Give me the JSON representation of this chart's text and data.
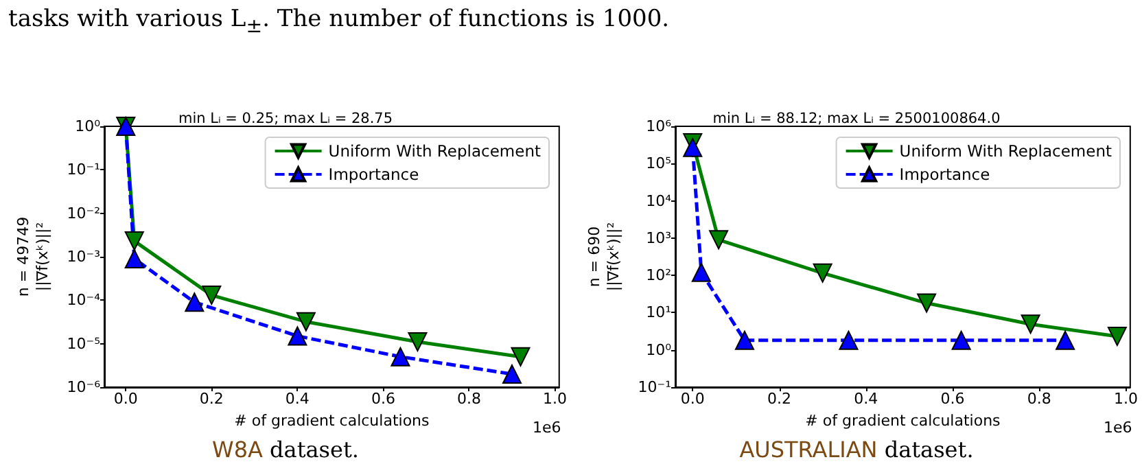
{
  "chart_data": [
    {
      "type": "line",
      "title": "min Lᵢ = 0.25; max Lᵢ = 28.75",
      "xlabel": "# of gradient calculations",
      "ylabel": "n = 49749\n||∇f(xᵏ)||²",
      "annotations": [
        "tasks with various L$_{±}$. The number of functions is 1000.",
        "1e6",
        "W8A dataset."
      ],
      "series": [
        {
          "name": "Uniform With Replacement",
          "color": "#008000",
          "marker": "triangle-down",
          "line_style": "solid",
          "x": [
            0,
            0.02,
            0.2,
            0.42,
            0.68,
            0.92
          ],
          "values": [
            1,
            0.0023,
            0.00013,
            3.2e-05,
            1.1e-05,
            5e-06
          ]
        },
        {
          "name": "Importance",
          "color": "#0000ff",
          "marker": "triangle",
          "line_style": "dashed",
          "x": [
            0,
            0.02,
            0.16,
            0.4,
            0.64,
            0.9
          ],
          "values": [
            1,
            0.0009,
            9e-05,
            1.5e-05,
            5e-06,
            2e-06
          ]
        }
      ],
      "log": "y",
      "xlim": [
        -0.05,
        1.01
      ],
      "ylim": [
        1e-06,
        1
      ],
      "xticks": [
        {
          "value": 0,
          "label": "0.0"
        },
        {
          "value": 0.2,
          "label": "0.2"
        },
        {
          "value": 0.4,
          "label": "0.4"
        },
        {
          "value": 0.6,
          "label": "0.6"
        },
        {
          "value": 0.8,
          "label": "0.8"
        },
        {
          "value": 1,
          "label": "1.0"
        }
      ],
      "yticks": [
        {
          "value": 1e-06,
          "label": "10⁻⁶"
        },
        {
          "value": 1e-05,
          "label": "10⁻⁵"
        },
        {
          "value": 0.0001,
          "label": "10⁻⁴"
        },
        {
          "value": 0.001,
          "label": "10⁻³"
        },
        {
          "value": 0.01,
          "label": "10⁻²"
        },
        {
          "value": 0.1,
          "label": "10⁻¹"
        },
        {
          "value": 1,
          "label": "10⁰"
        }
      ],
      "grid": false,
      "legend": "top right"
    },
    {
      "type": "line",
      "title": "min Lᵢ = 88.12; max Lᵢ = 2500100864.0",
      "xlabel": "# of gradient calculations",
      "ylabel": "n = 690\n||∇f(xᵏ)||²",
      "annotations": [
        "1e6",
        "AUSTRALIAN dataset."
      ],
      "series": [
        {
          "name": "Uniform With Replacement",
          "color": "#008000",
          "marker": "triangle-down",
          "line_style": "solid",
          "x": [
            0,
            0.06,
            0.3,
            0.54,
            0.78,
            0.98
          ],
          "values": [
            360000,
            900,
            115,
            18,
            4.9,
            2.3
          ]
        },
        {
          "name": "Importance",
          "color": "#0000ff",
          "marker": "triangle",
          "line_style": "dashed",
          "x": [
            0,
            0.02,
            0.12,
            0.36,
            0.62,
            0.86
          ],
          "values": [
            270000,
            120,
            1.8,
            1.8,
            1.8,
            1.8
          ]
        }
      ],
      "log": "y",
      "xlim": [
        -0.04,
        1.01
      ],
      "ylim": [
        0.1,
        1000000
      ],
      "xticks": [
        {
          "value": 0,
          "label": "0.0"
        },
        {
          "value": 0.2,
          "label": "0.2"
        },
        {
          "value": 0.4,
          "label": "0.4"
        },
        {
          "value": 0.6,
          "label": "0.6"
        },
        {
          "value": 0.8,
          "label": "0.8"
        },
        {
          "value": 1,
          "label": "1.0"
        }
      ],
      "yticks": [
        {
          "value": 0.1,
          "label": "10⁻¹"
        },
        {
          "value": 1,
          "label": "10⁰"
        },
        {
          "value": 10,
          "label": "10¹"
        },
        {
          "value": 100,
          "label": "10²"
        },
        {
          "value": 1000,
          "label": "10³"
        },
        {
          "value": 10000,
          "label": "10⁴"
        },
        {
          "value": 100000,
          "label": "10⁵"
        },
        {
          "value": 1000000,
          "label": "10⁶"
        }
      ],
      "grid": false,
      "legend": "top right"
    }
  ]
}
